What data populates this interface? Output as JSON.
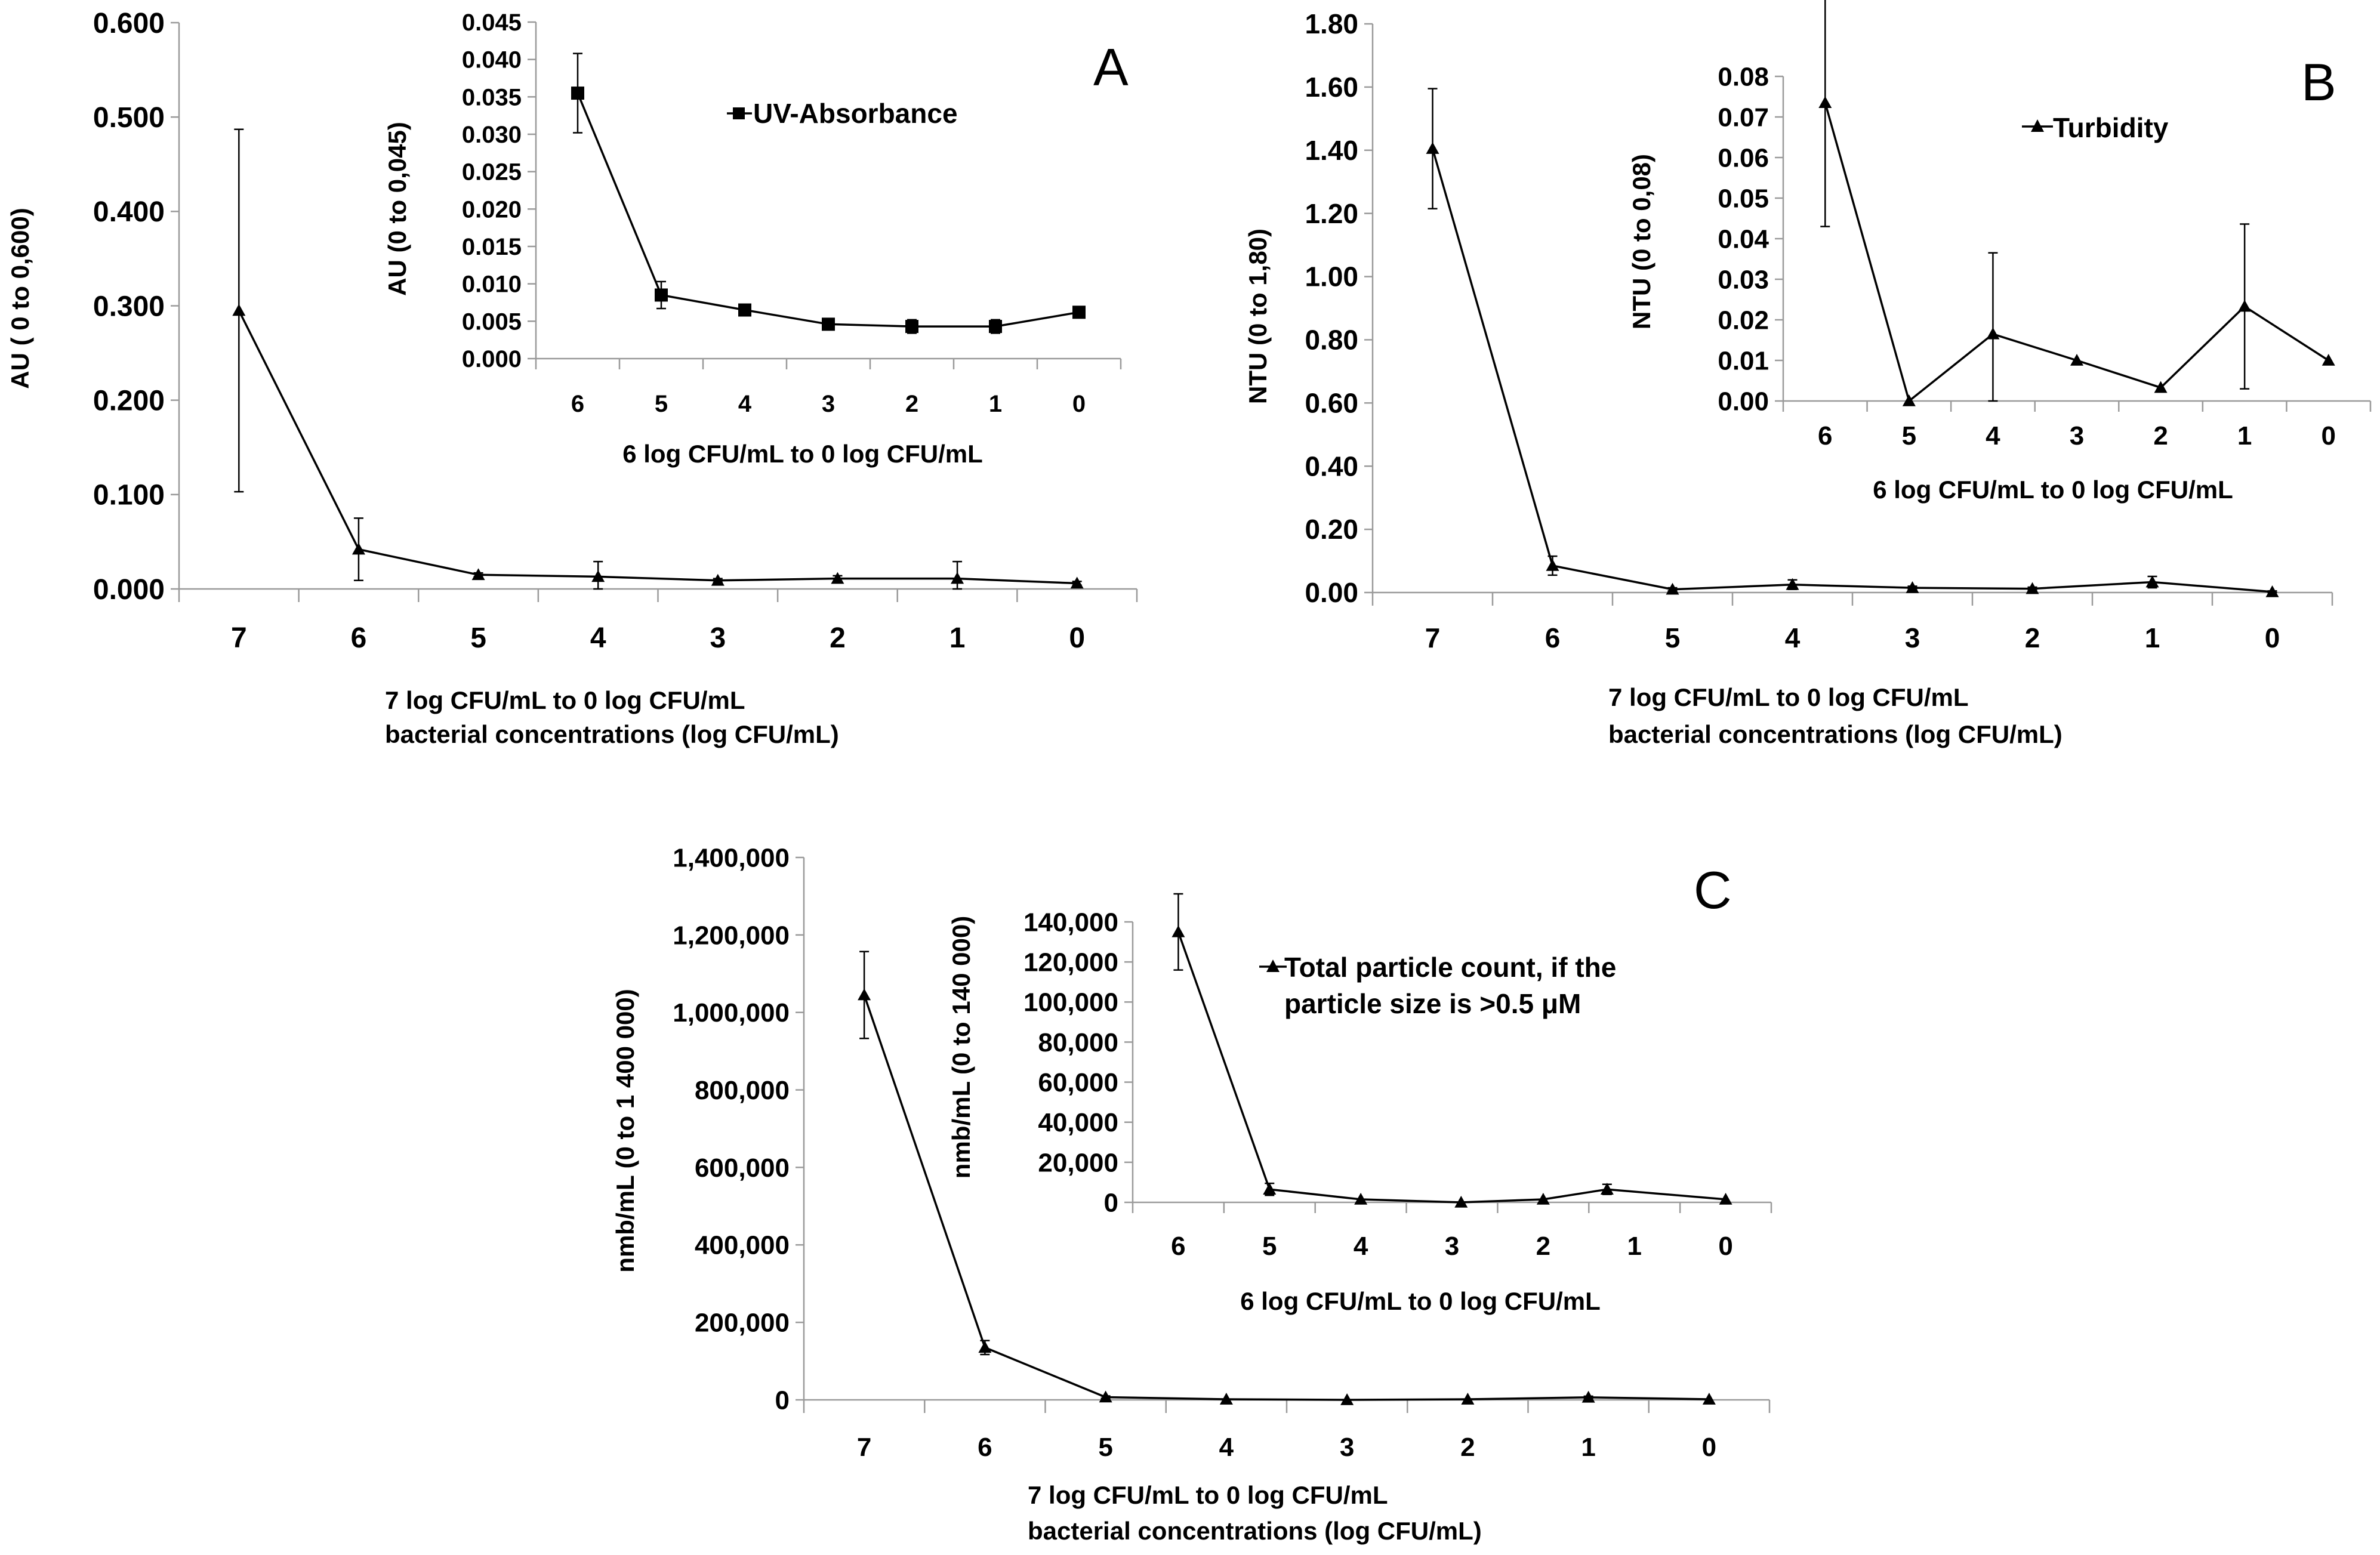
{
  "chart_data": [
    {
      "id": "A",
      "type": "line",
      "panel_letter": "A",
      "main": {
        "ylabel": "AU ( 0 to 0,600)",
        "xlabel_line1": "7 log CFU/mL to 0 log CFU/mL",
        "xlabel_line2": "bacterial concentrations (log CFU/mL)",
        "ylim": [
          0,
          0.6
        ],
        "yticks": [
          "0.000",
          "0.100",
          "0.200",
          "0.300",
          "0.400",
          "0.500",
          "0.600"
        ],
        "categories": [
          "7",
          "6",
          "5",
          "4",
          "3",
          "2",
          "1",
          "0"
        ],
        "series": [
          {
            "name": "UV-Absorbance",
            "marker": "triangle",
            "values": [
              0.295,
              0.042,
              0.015,
              0.013,
              0.009,
              0.011,
              0.011,
              0.006
            ],
            "errors": [
              0.192,
              0.033,
              0.002,
              0.016,
              0.002,
              0.003,
              0.018,
              0.002
            ]
          }
        ]
      },
      "inset": {
        "ylabel": "AU (0 to 0,045)",
        "xlabel": "6 log CFU/mL to 0 log CFU/mL",
        "ylim": [
          0,
          0.045
        ],
        "yticks": [
          "0.000",
          "0.005",
          "0.010",
          "0.015",
          "0.020",
          "0.025",
          "0.030",
          "0.035",
          "0.040",
          "0.045"
        ],
        "categories": [
          "6",
          "5",
          "4",
          "3",
          "2",
          "1",
          "0"
        ],
        "legend": "UV-Absorbance",
        "series": [
          {
            "name": "UV-Absorbance",
            "marker": "square",
            "values": [
              0.0355,
              0.0085,
              0.0065,
              0.0046,
              0.0043,
              0.0043,
              0.0062
            ],
            "errors": [
              0.0053,
              0.0018,
              0.0004,
              0.0003,
              0.0009,
              0.0009,
              0.0004
            ]
          }
        ]
      }
    },
    {
      "id": "B",
      "type": "line",
      "panel_letter": "B",
      "main": {
        "ylabel": "NTU (0 to 1,80)",
        "xlabel_line1": "7 log CFU/mL to 0 log CFU/mL",
        "xlabel_line2": "bacterial concentrations (log CFU/mL)",
        "ylim": [
          0,
          1.8
        ],
        "yticks": [
          "0.00",
          "0.20",
          "0.40",
          "0.60",
          "0.80",
          "1.00",
          "1.20",
          "1.40",
          "1.60",
          "1.80"
        ],
        "categories": [
          "7",
          "6",
          "5",
          "4",
          "3",
          "2",
          "1",
          "0"
        ],
        "series": [
          {
            "name": "Turbidity",
            "marker": "triangle",
            "values": [
              1.405,
              0.085,
              0.01,
              0.025,
              0.015,
              0.012,
              0.033,
              0.002
            ],
            "errors": [
              0.19,
              0.03,
              0.005,
              0.015,
              0.005,
              0.005,
              0.018,
              0.003
            ]
          }
        ]
      },
      "inset": {
        "ylabel": "NTU (0 to 0,08)",
        "xlabel": "6 log CFU/mL to 0 log CFU/mL",
        "ylim": [
          0,
          0.08
        ],
        "yticks": [
          "0.00",
          "0.01",
          "0.02",
          "0.03",
          "0.04",
          "0.05",
          "0.06",
          "0.07",
          "0.08"
        ],
        "categories": [
          "6",
          "5",
          "4",
          "3",
          "2",
          "1",
          "0"
        ],
        "legend": "Turbidity",
        "series": [
          {
            "name": "Turbidity",
            "marker": "triangle",
            "values": [
              0.0735,
              0.0,
              0.0165,
              0.01,
              0.0033,
              0.0233,
              0.01
            ],
            "errors": [
              0.0305,
              0.0,
              0.02,
              0.0,
              0.0,
              0.0203,
              0.0
            ]
          }
        ]
      }
    },
    {
      "id": "C",
      "type": "line",
      "panel_letter": "C",
      "main": {
        "ylabel": "nmb/mL (0 to 1 400 000)",
        "xlabel_line1": "7 log CFU/mL to 0 log CFU/mL",
        "xlabel_line2": "bacterial concentrations (log CFU/mL)",
        "ylim": [
          0,
          1400000
        ],
        "yticks": [
          "0",
          "200,000",
          "400,000",
          "600,000",
          "800,000",
          "1,000,000",
          "1,200,000",
          "1,400,000"
        ],
        "categories": [
          "7",
          "6",
          "5",
          "4",
          "3",
          "2",
          "1",
          "0"
        ],
        "series": [
          {
            "name": "Total particle count",
            "marker": "triangle",
            "values": [
              1045000,
              135000,
              7000,
              1500,
              0,
              1500,
              6500,
              1500
            ],
            "errors": [
              112000,
              18000,
              3000,
              0,
              0,
              0,
              3000,
              0
            ]
          }
        ]
      },
      "inset": {
        "ylabel": "nmb/mL (0 to 140 000)",
        "xlabel": "6 log CFU/mL to 0 log CFU/mL",
        "ylim": [
          0,
          140000
        ],
        "yticks": [
          "0",
          "20,000",
          "40,000",
          "60,000",
          "80,000",
          "100,000",
          "120,000",
          "140,000"
        ],
        "categories": [
          "6",
          "5",
          "4",
          "3",
          "2",
          "1",
          "0"
        ],
        "legend": "Total particle count, if the",
        "legend_line2": "particle size is >0.5 μM",
        "series": [
          {
            "name": "Total particle count, if the particle size is >0.5 μM",
            "marker": "triangle",
            "values": [
              135000,
              6500,
              1500,
              0,
              1500,
              6500,
              1500
            ],
            "errors": [
              19000,
              3000,
              0,
              0,
              0,
              2500,
              0
            ]
          }
        ]
      }
    }
  ]
}
